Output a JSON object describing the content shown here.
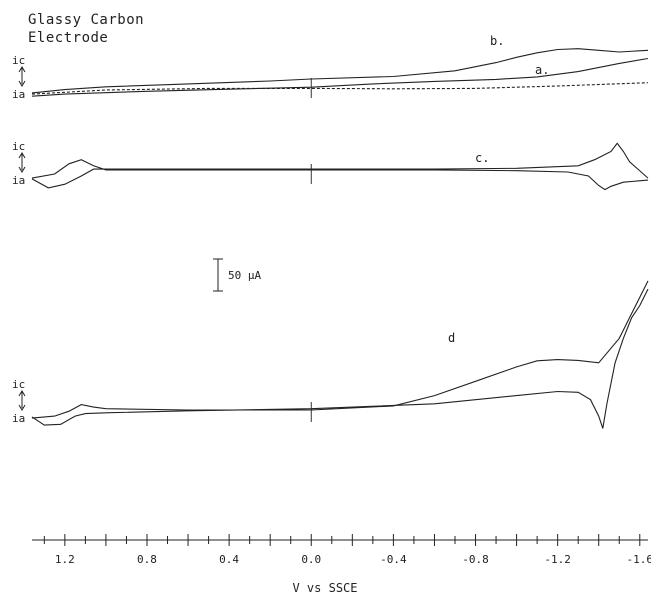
{
  "chart_data": {
    "type": "line",
    "title_lines": [
      "Glassy Carbon",
      "Electrode"
    ],
    "xlabel": "V vs SSCE",
    "xlim": [
      1.36,
      -1.64
    ],
    "x_ticks": [
      "1.2",
      "0.8",
      "0.4",
      "0.0",
      "-0.4",
      "-0.8",
      "-1.2",
      "-1.6"
    ],
    "x_tick_values": [
      1.2,
      0.8,
      0.4,
      0.0,
      -0.4,
      -0.8,
      -1.2,
      -1.6
    ],
    "current_axis_labels": {
      "cathodic": "ic",
      "anodic": "ia"
    },
    "scale_bar": {
      "label": "50 μA",
      "value_uA": 50
    },
    "panels": [
      {
        "curve_labels": [
          "b.",
          "a."
        ],
        "series": [
          {
            "name": "b.",
            "style": "solid",
            "forward": [
              [
                1.36,
                -12
              ],
              [
                1.2,
                -4
              ],
              [
                1.0,
                3
              ],
              [
                0.6,
                10
              ],
              [
                0.2,
                17
              ],
              [
                0.0,
                22
              ],
              [
                -0.4,
                28
              ],
              [
                -0.7,
                42
              ],
              [
                -0.9,
                62
              ],
              [
                -1.0,
                75
              ],
              [
                -1.1,
                86
              ],
              [
                -1.2,
                94
              ],
              [
                -1.3,
                96
              ],
              [
                -1.4,
                92
              ],
              [
                -1.5,
                88
              ],
              [
                -1.64,
                92
              ]
            ],
            "reverse": [
              [
                -1.64,
                72
              ],
              [
                -1.5,
                60
              ],
              [
                -1.3,
                40
              ],
              [
                -1.1,
                27
              ],
              [
                -0.9,
                21
              ],
              [
                -0.6,
                16
              ],
              [
                -0.3,
                10
              ],
              [
                0.0,
                2
              ],
              [
                0.4,
                -3
              ],
              [
                0.8,
                -8
              ],
              [
                1.2,
                -15
              ],
              [
                1.36,
                -20
              ]
            ]
          },
          {
            "name": "a.",
            "style": "dashed",
            "forward": [
              [
                1.36,
                -15
              ],
              [
                1.0,
                -5
              ],
              [
                0.5,
                -1
              ],
              [
                0.0,
                -1
              ],
              [
                -0.4,
                -2
              ],
              [
                -0.8,
                -1
              ],
              [
                -1.2,
                5
              ],
              [
                -1.64,
                13
              ]
            ]
          }
        ]
      },
      {
        "curve_labels": [
          "c."
        ],
        "series": [
          {
            "name": "c.",
            "style": "solid",
            "forward": [
              [
                1.36,
                -10
              ],
              [
                1.25,
                0
              ],
              [
                1.18,
                25
              ],
              [
                1.12,
                35
              ],
              [
                1.06,
                20
              ],
              [
                1.0,
                10
              ],
              [
                0.6,
                10
              ],
              [
                0.0,
                10
              ],
              [
                -0.6,
                10
              ],
              [
                -1.0,
                8
              ],
              [
                -1.25,
                5
              ],
              [
                -1.35,
                -5
              ],
              [
                -1.4,
                -28
              ],
              [
                -1.43,
                -38
              ],
              [
                -1.46,
                -30
              ],
              [
                -1.52,
                -20
              ],
              [
                -1.64,
                -15
              ]
            ],
            "reverse": [
              [
                -1.64,
                -10
              ],
              [
                -1.55,
                30
              ],
              [
                -1.52,
                55
              ],
              [
                -1.49,
                75
              ],
              [
                -1.46,
                55
              ],
              [
                -1.42,
                45
              ],
              [
                -1.38,
                35
              ],
              [
                -1.3,
                20
              ],
              [
                -1.0,
                14
              ],
              [
                -0.6,
                12
              ],
              [
                0.0,
                12
              ],
              [
                0.6,
                12
              ],
              [
                1.0,
                12
              ],
              [
                1.06,
                12
              ],
              [
                1.12,
                -5
              ],
              [
                1.2,
                -25
              ],
              [
                1.28,
                -34
              ],
              [
                1.36,
                -12
              ]
            ]
          }
        ]
      },
      {
        "curve_labels": [
          "d"
        ],
        "series": [
          {
            "name": "d",
            "style": "solid",
            "forward": [
              [
                1.36,
                -15
              ],
              [
                1.25,
                -10
              ],
              [
                1.18,
                2
              ],
              [
                1.12,
                18
              ],
              [
                1.06,
                12
              ],
              [
                1.0,
                8
              ],
              [
                0.6,
                5
              ],
              [
                0.0,
                5
              ],
              [
                -0.4,
                15
              ],
              [
                -0.6,
                40
              ],
              [
                -0.8,
                75
              ],
              [
                -1.0,
                110
              ],
              [
                -1.1,
                125
              ],
              [
                -1.2,
                128
              ],
              [
                -1.3,
                126
              ],
              [
                -1.4,
                120
              ],
              [
                -1.5,
                180
              ],
              [
                -1.55,
                230
              ],
              [
                -1.6,
                280
              ],
              [
                -1.64,
                320
              ]
            ],
            "reverse": [
              [
                -1.64,
                300
              ],
              [
                -1.6,
                260
              ],
              [
                -1.56,
                230
              ],
              [
                -1.52,
                180
              ],
              [
                -1.48,
                120
              ],
              [
                -1.44,
                20
              ],
              [
                -1.42,
                -40
              ],
              [
                -1.4,
                -10
              ],
              [
                -1.36,
                30
              ],
              [
                -1.3,
                48
              ],
              [
                -1.2,
                50
              ],
              [
                -1.0,
                40
              ],
              [
                -0.6,
                20
              ],
              [
                0.0,
                8
              ],
              [
                0.6,
                3
              ],
              [
                1.0,
                -2
              ],
              [
                1.1,
                -4
              ],
              [
                1.15,
                -10
              ],
              [
                1.22,
                -30
              ],
              [
                1.3,
                -32
              ],
              [
                1.36,
                -12
              ]
            ]
          }
        ]
      }
    ]
  }
}
